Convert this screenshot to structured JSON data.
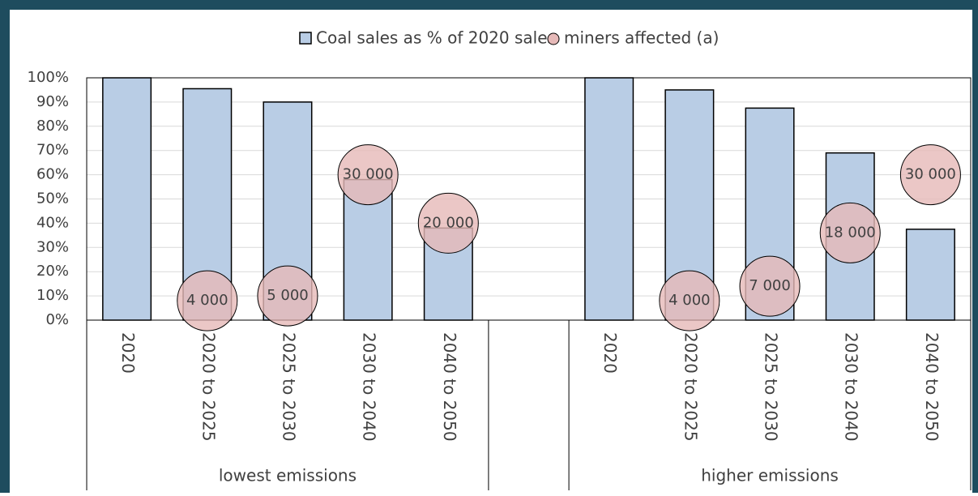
{
  "chart_data": {
    "type": "bar",
    "categories": [
      "2020",
      "2020 to 2025",
      "2025 to 2030",
      "2030 to 2040",
      "2040 to 2050",
      null,
      "2020",
      "2020 to 2025",
      "2025 to 2030",
      "2030 to 2040",
      "2040 to 2050"
    ],
    "groups": [
      "lowest emissions",
      "higher emissions"
    ],
    "series": [
      {
        "name": "Coal sales as % of 2020 sales",
        "color": "#b9cde5",
        "values": [
          100,
          95.5,
          90,
          58,
          38,
          null,
          100,
          95,
          87.5,
          69,
          37.5
        ]
      },
      {
        "name": "miners affected (a)",
        "type": "bubble",
        "color": "#e6b9b8",
        "y": [
          null,
          8,
          10,
          60,
          40,
          null,
          null,
          8,
          14,
          36,
          60
        ],
        "values": [
          null,
          4000,
          5000,
          30000,
          20000,
          null,
          null,
          4000,
          7000,
          18000,
          30000
        ],
        "value_labels": [
          null,
          "4 000",
          "5 000",
          "30 000",
          "20 000",
          null,
          null,
          "4 000",
          "7 000",
          "18 000",
          "30 000"
        ]
      }
    ],
    "ylim": [
      0,
      100
    ],
    "yticks": [
      {
        "value": 0,
        "label": "0%"
      },
      {
        "value": 10,
        "label": "10%"
      },
      {
        "value": 20,
        "label": "20%"
      },
      {
        "value": 30,
        "label": "30%"
      },
      {
        "value": 40,
        "label": "40%"
      },
      {
        "value": 50,
        "label": "50%"
      },
      {
        "value": 60,
        "label": "60%"
      },
      {
        "value": 70,
        "label": "70%"
      },
      {
        "value": 80,
        "label": "80%"
      },
      {
        "value": 90,
        "label": "90%"
      },
      {
        "value": 100,
        "label": "100%"
      }
    ],
    "grid": true
  }
}
